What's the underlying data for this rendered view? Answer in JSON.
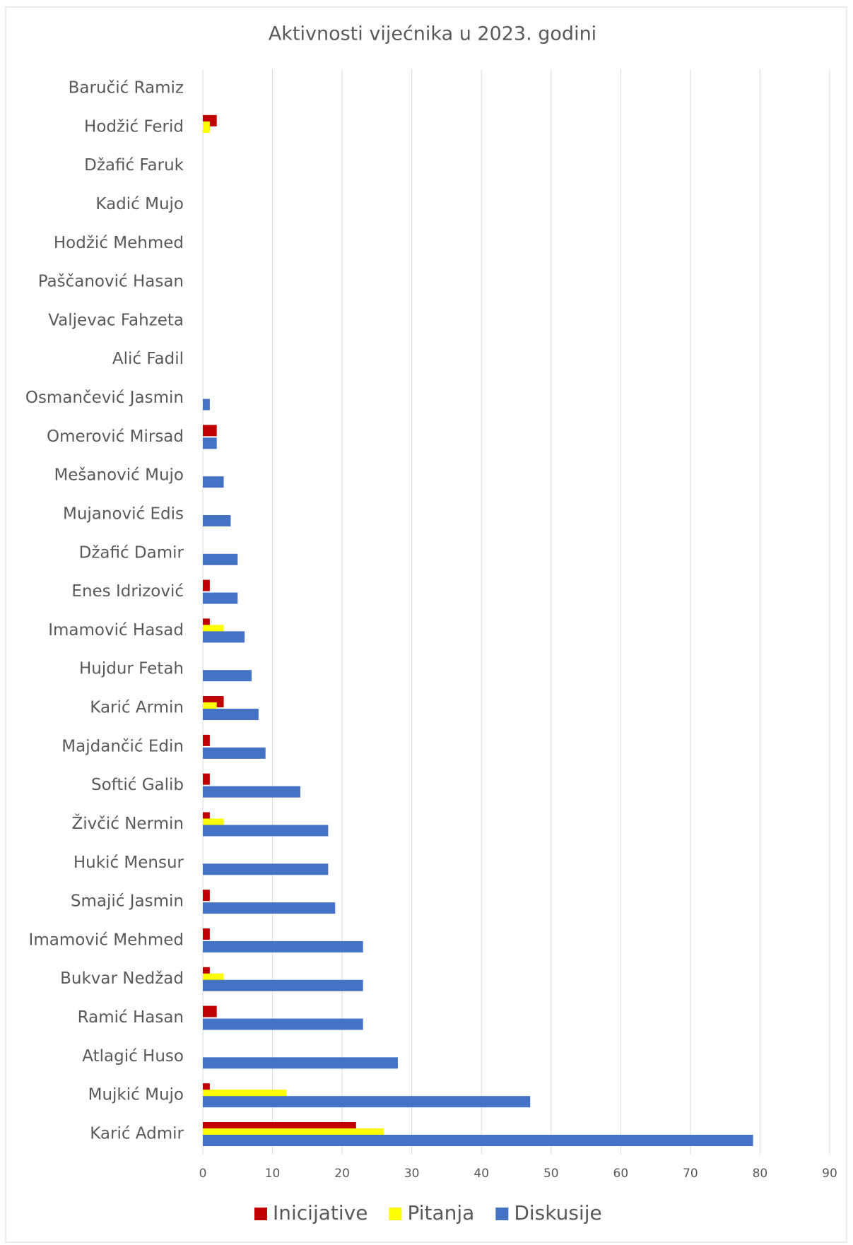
{
  "chart_data": {
    "type": "hbar",
    "title": "Aktivnosti vijećnika u 2023. godini",
    "categories": [
      "Baručić Ramiz",
      "Hodžić Ferid",
      "Džafić Faruk",
      "Kadić Mujo",
      "Hodžić Mehmed",
      "Paščanović Hasan",
      "Valjevac Fahzeta",
      "Alić Fadil",
      "Osmančević Jasmin",
      "Omerović Mirsad",
      "Mešanović Mujo",
      "Mujanović Edis",
      "Džafić Damir",
      "Enes Idrizović",
      "Imamović Hasad",
      "Hujdur Fetah",
      "Karić Armin",
      "Majdančić Edin",
      "Softić Galib",
      "Živčić Nermin",
      "Hukić Mensur",
      "Smajić Jasmin",
      "Imamović Mehmed",
      "Bukvar Nedžad",
      "Ramić Hasan",
      "Atlagić Huso",
      "Mujkić Mujo",
      "Karić Admir"
    ],
    "series": [
      {
        "name": "Inicijative",
        "color": "#c00000",
        "values": [
          0,
          2,
          0,
          0,
          0,
          0,
          0,
          0,
          0,
          2,
          0,
          0,
          0,
          1,
          1,
          0,
          3,
          1,
          1,
          1,
          0,
          1,
          1,
          1,
          2,
          0,
          1,
          22
        ]
      },
      {
        "name": "Pitanja",
        "color": "#ffff00",
        "values": [
          0,
          1,
          0,
          0,
          0,
          0,
          0,
          0,
          0,
          0,
          0,
          0,
          0,
          0,
          3,
          0,
          2,
          0,
          0,
          3,
          0,
          0,
          0,
          3,
          0,
          0,
          12,
          26
        ]
      },
      {
        "name": "Diskusije",
        "color": "#4472c4",
        "values": [
          0,
          0,
          0,
          0,
          0,
          0,
          0,
          0,
          1,
          2,
          3,
          4,
          5,
          5,
          6,
          7,
          8,
          9,
          14,
          18,
          18,
          19,
          23,
          23,
          23,
          28,
          47,
          79
        ]
      }
    ],
    "xlim": [
      0,
      90
    ],
    "xticks": [
      0,
      10,
      20,
      30,
      40,
      50,
      60,
      70,
      80,
      90
    ],
    "grid": true,
    "legend": "bottom"
  }
}
